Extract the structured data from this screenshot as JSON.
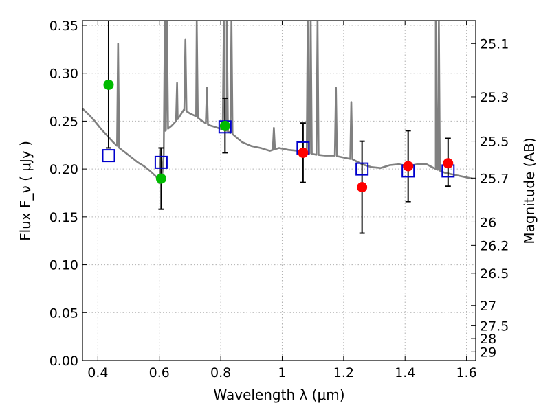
{
  "chart_data": {
    "type": "scatter",
    "xlabel": "Wavelength  λ (μm)",
    "ylabel": "Flux  F_ν  ( μJy )",
    "y2label": "Magnitude (AB)",
    "xlim": [
      0.35,
      1.63
    ],
    "ylim": [
      0.0,
      0.355
    ],
    "grid": true,
    "x_ticks": [
      {
        "v": 0.4,
        "label": "0.4"
      },
      {
        "v": 0.6,
        "label": "0.6"
      },
      {
        "v": 0.8,
        "label": "0.8"
      },
      {
        "v": 1.0,
        "label": "1"
      },
      {
        "v": 1.2,
        "label": "1.2"
      },
      {
        "v": 1.4,
        "label": "1.4"
      },
      {
        "v": 1.6,
        "label": "1.6"
      }
    ],
    "y_ticks": [
      {
        "v": 0.0,
        "label": "0.00"
      },
      {
        "v": 0.05,
        "label": "0.05"
      },
      {
        "v": 0.1,
        "label": "0.10"
      },
      {
        "v": 0.15,
        "label": "0.15"
      },
      {
        "v": 0.2,
        "label": "0.20"
      },
      {
        "v": 0.25,
        "label": "0.25"
      },
      {
        "v": 0.3,
        "label": "0.30"
      },
      {
        "v": 0.35,
        "label": "0.35"
      }
    ],
    "y2_ticks": [
      {
        "mag": 25.1,
        "label": "25.1"
      },
      {
        "mag": 25.3,
        "label": "25.3"
      },
      {
        "mag": 25.5,
        "label": "25.5"
      },
      {
        "mag": 25.7,
        "label": "25.7"
      },
      {
        "mag": 26.0,
        "label": "26"
      },
      {
        "mag": 26.2,
        "label": "26.2"
      },
      {
        "mag": 26.5,
        "label": "26.5"
      },
      {
        "mag": 27.0,
        "label": "27"
      },
      {
        "mag": 27.5,
        "label": "27.5"
      },
      {
        "mag": 28.0,
        "label": "28"
      },
      {
        "mag": 29.0,
        "label": "29"
      }
    ],
    "series": [
      {
        "kind": "model_spectrum",
        "color": "#808080",
        "x": [
          0.35,
          0.37,
          0.39,
          0.41,
          0.43,
          0.45,
          0.47,
          0.49,
          0.51,
          0.53,
          0.55,
          0.57,
          0.59,
          0.6,
          0.61,
          0.62,
          0.64,
          0.66,
          0.68,
          0.7,
          0.72,
          0.74,
          0.76,
          0.78,
          0.8,
          0.82,
          0.84,
          0.87,
          0.9,
          0.93,
          0.96,
          0.99,
          1.02,
          1.05,
          1.08,
          1.11,
          1.14,
          1.17,
          1.2,
          1.23,
          1.26,
          1.29,
          1.32,
          1.35,
          1.38,
          1.41,
          1.44,
          1.47,
          1.5,
          1.53,
          1.56,
          1.59,
          1.62
        ],
        "y": [
          0.263,
          0.257,
          0.25,
          0.242,
          0.235,
          0.228,
          0.222,
          0.217,
          0.212,
          0.207,
          0.203,
          0.198,
          0.192,
          0.185,
          0.195,
          0.24,
          0.245,
          0.252,
          0.262,
          0.258,
          0.255,
          0.25,
          0.246,
          0.244,
          0.242,
          0.24,
          0.236,
          0.228,
          0.224,
          0.222,
          0.219,
          0.222,
          0.22,
          0.219,
          0.217,
          0.215,
          0.214,
          0.214,
          0.212,
          0.21,
          0.205,
          0.202,
          0.201,
          0.204,
          0.205,
          0.203,
          0.205,
          0.205,
          0.2,
          0.196,
          0.194,
          0.192,
          0.19
        ],
        "emission_lines": [
          {
            "x": 0.466,
            "peak": 0.331
          },
          {
            "x": 0.605,
            "peak": 0.222
          },
          {
            "x": 0.618,
            "peak": 0.355
          },
          {
            "x": 0.625,
            "peak": 0.355
          },
          {
            "x": 0.658,
            "peak": 0.29
          },
          {
            "x": 0.685,
            "peak": 0.335
          },
          {
            "x": 0.722,
            "peak": 0.355
          },
          {
            "x": 0.755,
            "peak": 0.285
          },
          {
            "x": 0.81,
            "peak": 0.355
          },
          {
            "x": 0.82,
            "peak": 0.355
          },
          {
            "x": 0.835,
            "peak": 0.355
          },
          {
            "x": 0.973,
            "peak": 0.243
          },
          {
            "x": 1.083,
            "peak": 0.355
          },
          {
            "x": 1.093,
            "peak": 0.355
          },
          {
            "x": 1.115,
            "peak": 0.355
          },
          {
            "x": 1.175,
            "peak": 0.285
          },
          {
            "x": 1.225,
            "peak": 0.27
          },
          {
            "x": 1.5,
            "peak": 0.355
          },
          {
            "x": 1.51,
            "peak": 0.355
          }
        ]
      },
      {
        "kind": "model_bandpass",
        "marker": "open-square",
        "color": "#0000cc",
        "x": [
          0.435,
          0.606,
          0.814,
          1.068,
          1.26,
          1.41,
          1.54
        ],
        "y": [
          0.214,
          0.207,
          0.244,
          0.222,
          0.2,
          0.198,
          0.198
        ]
      },
      {
        "kind": "observed_optical",
        "marker": "filled-circle",
        "color": "#00bb00",
        "x": [
          0.435,
          0.606,
          0.814
        ],
        "y": [
          0.288,
          0.19,
          0.245
        ],
        "err_low": [
          0.222,
          0.158,
          0.217
        ],
        "err_high": [
          0.355,
          0.222,
          0.274
        ]
      },
      {
        "kind": "observed_nir",
        "marker": "filled-circle",
        "color": "#ff0000",
        "x": [
          1.068,
          1.26,
          1.41,
          1.54
        ],
        "y": [
          0.217,
          0.181,
          0.203,
          0.206
        ],
        "err_low": [
          0.186,
          0.133,
          0.166,
          0.182
        ],
        "err_high": [
          0.248,
          0.229,
          0.24,
          0.232
        ]
      }
    ]
  }
}
